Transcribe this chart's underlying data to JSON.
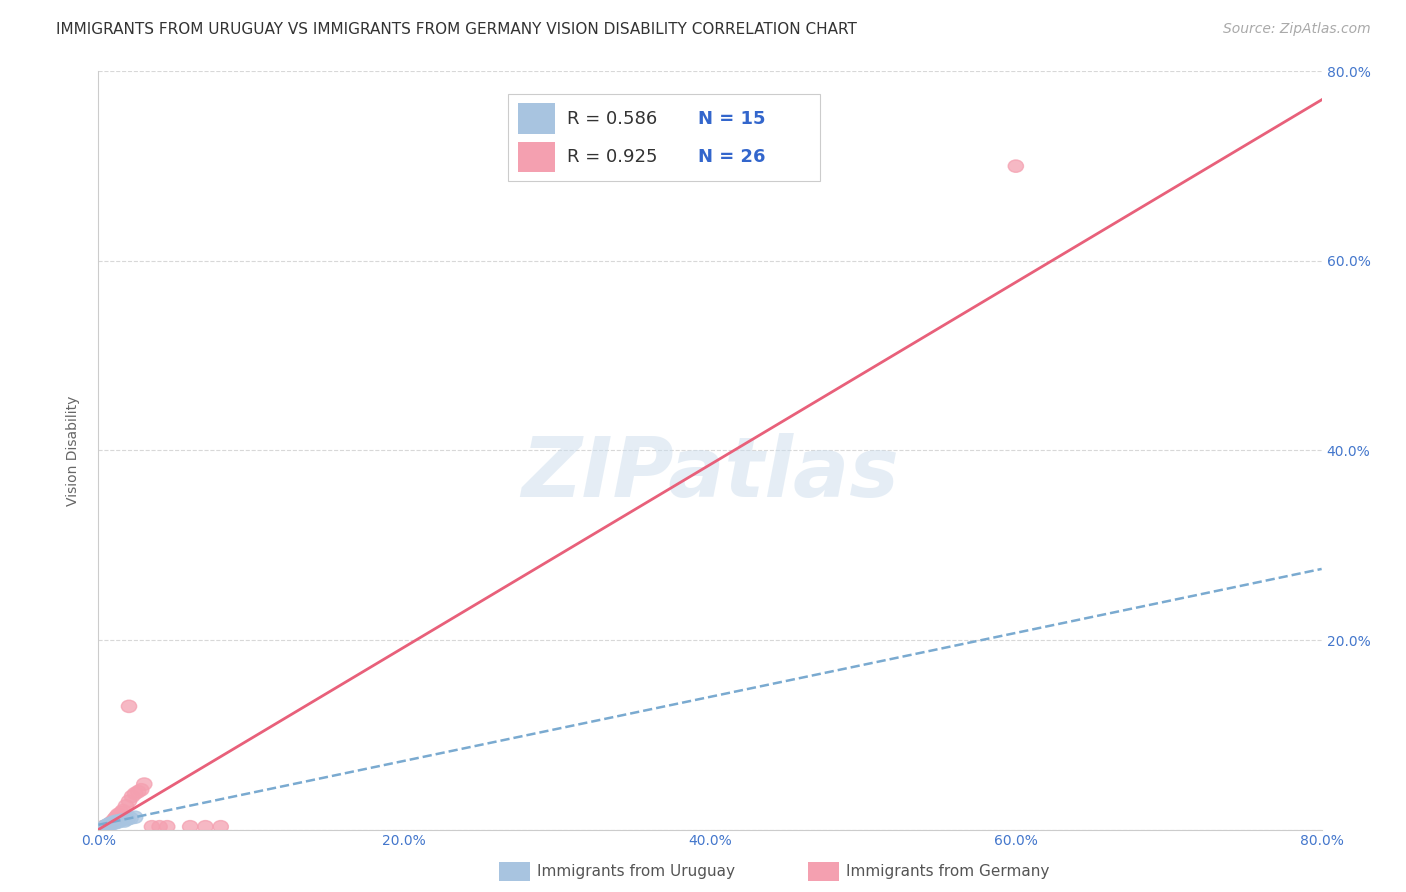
{
  "title": "IMMIGRANTS FROM URUGUAY VS IMMIGRANTS FROM GERMANY VISION DISABILITY CORRELATION CHART",
  "source": "Source: ZipAtlas.com",
  "ylabel": "Vision Disability",
  "xlim": [
    0.0,
    0.8
  ],
  "ylim": [
    0.0,
    0.8
  ],
  "xtick_labels": [
    "0.0%",
    "",
    "20.0%",
    "",
    "40.0%",
    "",
    "60.0%",
    "",
    "80.0%"
  ],
  "xtick_vals": [
    0.0,
    0.1,
    0.2,
    0.3,
    0.4,
    0.5,
    0.6,
    0.7,
    0.8
  ],
  "ytick_right_labels": [
    "",
    "20.0%",
    "40.0%",
    "60.0%",
    "80.0%"
  ],
  "ytick_vals": [
    0.0,
    0.2,
    0.4,
    0.6,
    0.8
  ],
  "watermark": "ZIPatlas",
  "uruguay_R": 0.586,
  "uruguay_N": 15,
  "germany_R": 0.925,
  "germany_N": 26,
  "uruguay_color": "#a8c4e0",
  "germany_color": "#f4a0b0",
  "uruguay_line_color": "#7aaad0",
  "germany_line_color": "#e8607a",
  "background_color": "#ffffff",
  "grid_color": "#d8d8d8",
  "title_fontsize": 11,
  "axis_label_fontsize": 10,
  "tick_fontsize": 10,
  "legend_fontsize": 13,
  "watermark_fontsize": 60,
  "source_fontsize": 10,
  "uru_scatter_x": [
    0.004,
    0.005,
    0.006,
    0.007,
    0.008,
    0.009,
    0.01,
    0.011,
    0.012,
    0.013,
    0.015,
    0.017,
    0.019,
    0.021,
    0.024
  ],
  "uru_scatter_y": [
    0.003,
    0.004,
    0.005,
    0.006,
    0.005,
    0.007,
    0.008,
    0.007,
    0.009,
    0.008,
    0.01,
    0.009,
    0.011,
    0.012,
    0.013
  ],
  "ger_scatter_x": [
    0.003,
    0.005,
    0.007,
    0.008,
    0.009,
    0.01,
    0.011,
    0.012,
    0.013,
    0.015,
    0.016,
    0.018,
    0.02,
    0.022,
    0.024,
    0.026,
    0.028,
    0.03,
    0.035,
    0.04,
    0.045,
    0.06,
    0.07,
    0.08,
    0.6,
    0.02
  ],
  "ger_scatter_y": [
    0.003,
    0.004,
    0.005,
    0.007,
    0.008,
    0.01,
    0.012,
    0.014,
    0.016,
    0.018,
    0.02,
    0.025,
    0.03,
    0.035,
    0.038,
    0.04,
    0.042,
    0.048,
    0.003,
    0.003,
    0.003,
    0.003,
    0.003,
    0.003,
    0.7,
    0.13
  ],
  "uru_line_x": [
    0.0,
    0.8
  ],
  "uru_line_y": [
    0.005,
    0.275
  ],
  "ger_line_x": [
    0.0,
    0.8
  ],
  "ger_line_y": [
    0.0,
    0.77
  ]
}
